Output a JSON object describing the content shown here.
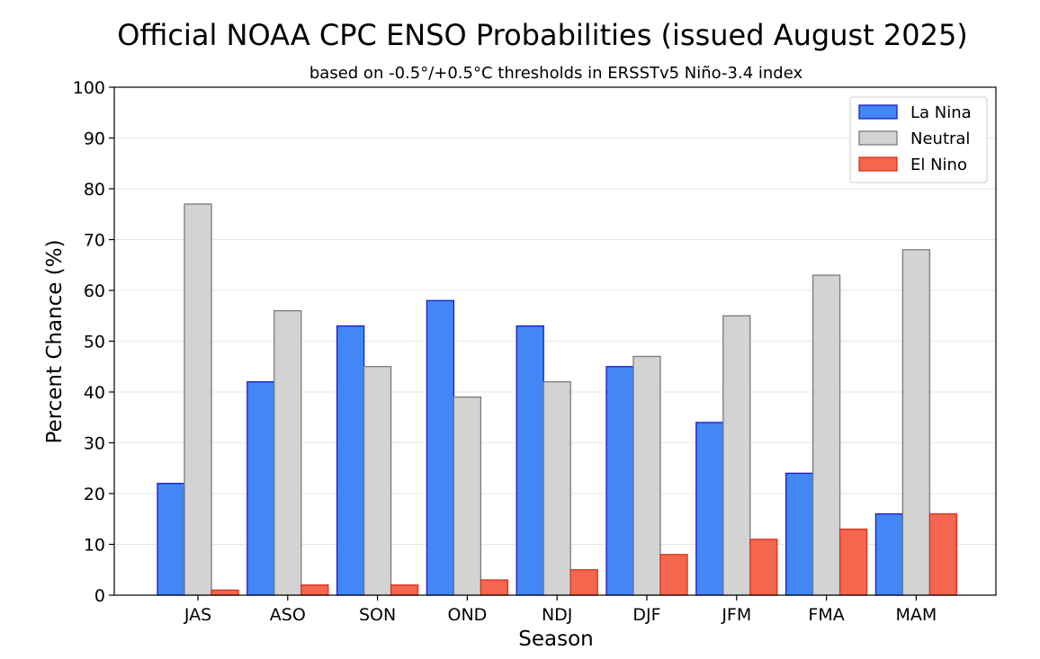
{
  "chart_data": {
    "type": "bar",
    "title": "Official NOAA CPC ENSO Probabilities (issued August 2025)",
    "subtitle": "based on -0.5°/+0.5°C thresholds in ERSSTv5 Niño-3.4 index",
    "xlabel": "Season",
    "ylabel": "Percent Chance (%)",
    "ylim": [
      0,
      100
    ],
    "yticks": [
      0,
      10,
      20,
      30,
      40,
      50,
      60,
      70,
      80,
      90,
      100
    ],
    "grid": "horizontal",
    "legend_position": "top-right",
    "categories": [
      "JAS",
      "ASO",
      "SON",
      "OND",
      "NDJ",
      "DJF",
      "JFM",
      "FMA",
      "MAM"
    ],
    "series": [
      {
        "name": "La Nina",
        "color": "#4287f5",
        "edge_color": "#1a1acc",
        "values": [
          22,
          42,
          53,
          58,
          53,
          45,
          34,
          24,
          16
        ]
      },
      {
        "name": "Neutral",
        "color": "#d3d3d3",
        "edge_color": "#7a7a7a",
        "values": [
          77,
          56,
          45,
          39,
          42,
          47,
          55,
          63,
          68
        ]
      },
      {
        "name": "El Nino",
        "color": "#f4664d",
        "edge_color": "#d8321f",
        "values": [
          1,
          2,
          2,
          3,
          5,
          8,
          11,
          13,
          16
        ]
      }
    ]
  }
}
